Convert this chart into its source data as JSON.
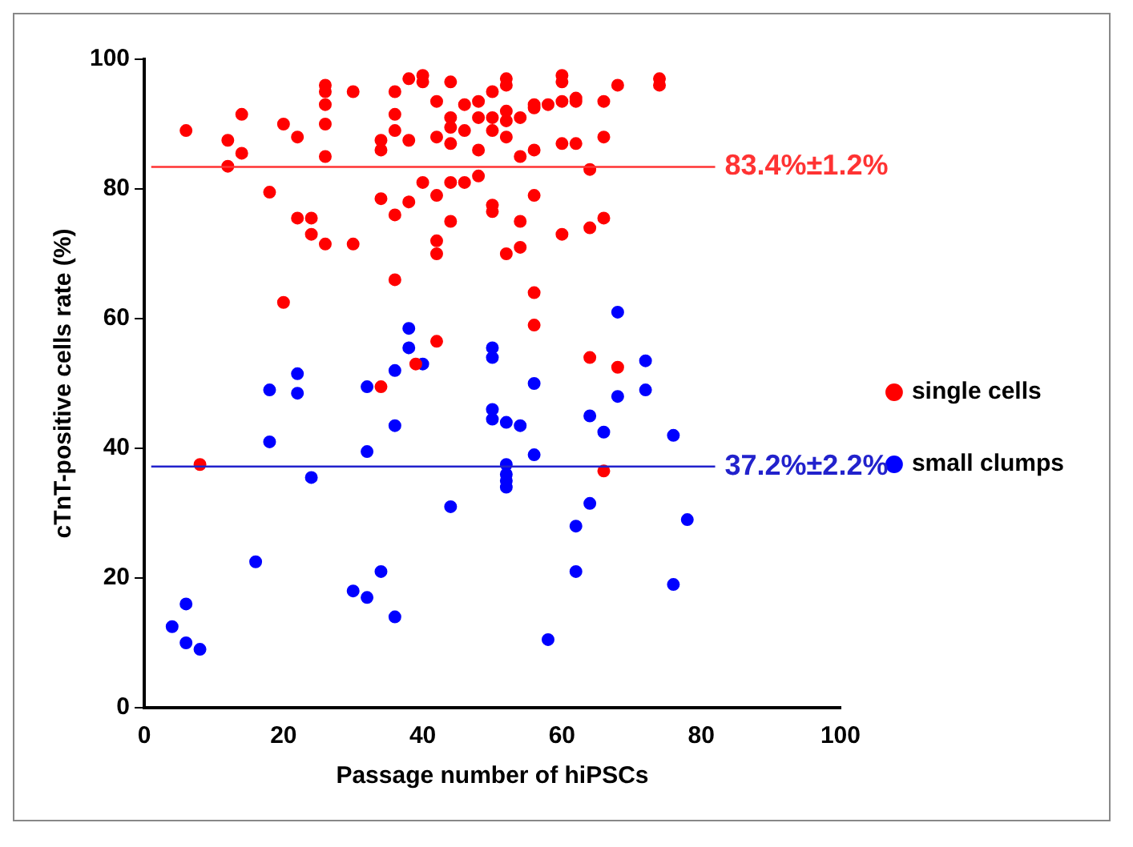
{
  "chart_data": {
    "type": "scatter",
    "xlabel": "Passage number of hiPSCs",
    "ylabel": "cTnT-positive cells rate (%)",
    "xlim": [
      0,
      100
    ],
    "xticks": [
      0,
      20,
      40,
      60,
      80,
      100
    ],
    "ylim": [
      0,
      100
    ],
    "yticks": [
      0,
      20,
      40,
      60,
      80,
      100
    ],
    "grid": false,
    "legend": "right",
    "marker": "circle",
    "series": [
      {
        "name": "single cells",
        "color": "#ff0000",
        "x": [
          6,
          12,
          12,
          14,
          14,
          18,
          20,
          20,
          22,
          22,
          24,
          24,
          26,
          26,
          26,
          26,
          26,
          26,
          30,
          30,
          34,
          34,
          34,
          34,
          36,
          36,
          36,
          36,
          36,
          38,
          38,
          38,
          40,
          40,
          40,
          39,
          42,
          42,
          42,
          42,
          42,
          42,
          44,
          44,
          44,
          44,
          44,
          44,
          46,
          46,
          46,
          48,
          48,
          48,
          48,
          50,
          50,
          50,
          50,
          50,
          52,
          52,
          52,
          52,
          52,
          52,
          54,
          54,
          54,
          54,
          56,
          56,
          56,
          56,
          56,
          56,
          58,
          60,
          60,
          60,
          60,
          60,
          62,
          62,
          62,
          64,
          64,
          64,
          66,
          66,
          66,
          66,
          68,
          68,
          74,
          74,
          8
        ],
        "values": [
          89,
          87.5,
          83.5,
          91.5,
          85.5,
          79.5,
          90,
          62.5,
          88,
          75.5,
          75.5,
          73,
          96,
          95,
          93,
          90,
          85,
          71.5,
          95,
          71.5,
          87.5,
          86,
          78.5,
          49.5,
          95,
          91.5,
          89,
          76,
          66,
          97,
          87.5,
          78,
          97.5,
          96.5,
          81,
          53,
          93.5,
          88,
          79,
          72,
          70,
          56.5,
          96.5,
          91,
          89.5,
          87,
          81,
          75,
          93,
          89,
          81,
          93.5,
          91,
          86,
          82,
          95,
          91,
          89,
          77.5,
          76.5,
          97,
          96,
          92,
          90.5,
          88,
          70,
          91,
          85,
          75,
          71,
          93,
          92.5,
          86,
          79,
          64,
          59,
          93,
          97.5,
          96.5,
          93.5,
          87,
          73,
          94,
          93.5,
          87,
          83,
          74,
          54,
          93.5,
          88,
          75.5,
          36.5,
          96,
          52.5,
          97,
          96,
          37.5
        ]
      },
      {
        "name": "small clumps",
        "color": "#0000ff",
        "x": [
          4,
          6,
          6,
          8,
          16,
          18,
          18,
          22,
          22,
          24,
          30,
          32,
          32,
          32,
          34,
          36,
          36,
          36,
          38,
          38,
          40,
          44,
          50,
          50,
          50,
          50,
          52,
          52,
          52,
          52,
          52,
          54,
          56,
          56,
          58,
          62,
          62,
          64,
          64,
          66,
          68,
          68,
          72,
          72,
          76,
          76,
          78
        ],
        "values": [
          12.5,
          16,
          10,
          9,
          22.5,
          49,
          41,
          51.5,
          48.5,
          35.5,
          18,
          49.5,
          39.5,
          17,
          21,
          52,
          43.5,
          14,
          58.5,
          55.5,
          53,
          31,
          55.5,
          54,
          46,
          44.5,
          44,
          37.5,
          36,
          35,
          34,
          43.5,
          50,
          39,
          10.5,
          28,
          21,
          45,
          31.5,
          42.5,
          61,
          48,
          53.5,
          49,
          42,
          19,
          29
        ]
      }
    ],
    "ref_lines": [
      {
        "axis": "y",
        "value": 83.4,
        "label": "83.4%±1.2%",
        "color": "#ff3333"
      },
      {
        "axis": "y",
        "value": 37.2,
        "label": "37.2%±2.2%",
        "color": "#2222cc"
      }
    ]
  }
}
